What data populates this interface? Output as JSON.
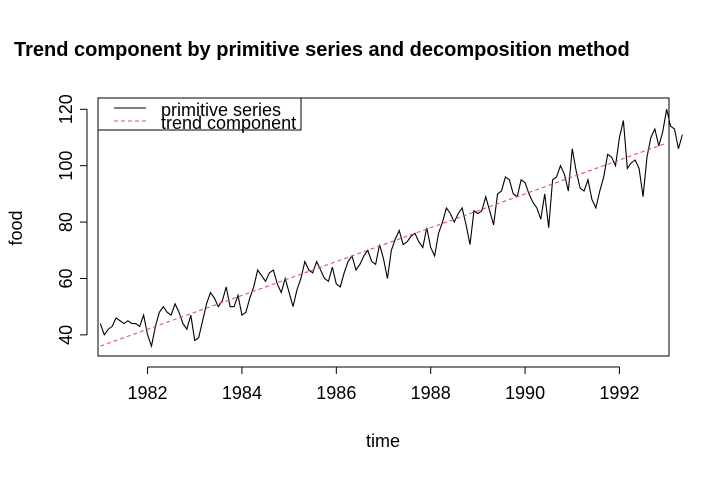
{
  "chart_data": {
    "type": "line",
    "title": "Trend component by primitive series and decomposition method",
    "xlabel": "time",
    "ylabel": "food",
    "xlim": [
      1980.95,
      1993.05
    ],
    "ylim": [
      32.5,
      124
    ],
    "x_ticks": [
      1982,
      1984,
      1986,
      1988,
      1990,
      1992
    ],
    "x_tick_labels": [
      "1982",
      "1984",
      "1986",
      "1988",
      "1990",
      "1992"
    ],
    "y_ticks": [
      40,
      60,
      80,
      100,
      120
    ],
    "y_tick_labels": [
      "40",
      "60",
      "80",
      "100",
      "120"
    ],
    "legend": {
      "position": "top-left",
      "entries": [
        {
          "label": "primitive series",
          "color": "#000000",
          "style": "solid"
        },
        {
          "label": "trend component",
          "color": "#DF536B",
          "style": "dashed"
        }
      ]
    },
    "x_start": 1981.0,
    "x_step": 0.0833333,
    "series": [
      {
        "name": "primitive series",
        "color": "#000000",
        "style": "solid",
        "values": [
          44,
          40,
          42,
          43,
          46,
          45,
          44,
          45,
          44,
          44,
          43,
          47,
          40,
          36,
          43,
          48,
          50,
          48,
          47,
          51,
          48,
          44,
          42,
          47,
          38,
          39,
          45,
          51,
          55,
          53,
          50,
          52,
          57,
          50,
          50,
          54,
          47,
          48,
          53,
          57,
          63,
          61,
          59,
          62,
          63,
          58,
          55,
          60,
          55,
          50,
          56,
          60,
          66,
          63,
          62,
          66,
          63,
          60,
          59,
          64,
          58,
          57,
          62,
          66,
          68,
          63,
          65,
          68,
          70,
          66,
          65,
          72,
          67,
          60,
          70,
          74,
          77,
          72,
          73,
          75,
          76,
          73,
          71,
          78,
          71,
          68,
          76,
          80,
          85,
          83,
          80,
          83,
          85,
          79,
          72,
          84,
          83,
          84,
          89,
          84,
          79,
          90,
          91,
          96,
          95,
          90,
          89,
          95,
          94,
          90,
          87,
          85,
          81,
          90,
          78,
          95,
          96,
          100,
          97,
          91,
          106,
          98,
          92,
          91,
          95,
          88,
          85,
          91,
          96,
          104,
          103,
          100,
          110,
          116,
          99,
          101,
          102,
          99,
          89,
          103,
          110,
          113,
          107,
          112,
          120,
          114,
          113,
          106,
          111
        ]
      },
      {
        "name": "trend component",
        "color": "#DF536B",
        "style": "dashed",
        "x": [
          1981.0,
          1993.0
        ],
        "values": [
          36,
          108
        ]
      }
    ]
  }
}
